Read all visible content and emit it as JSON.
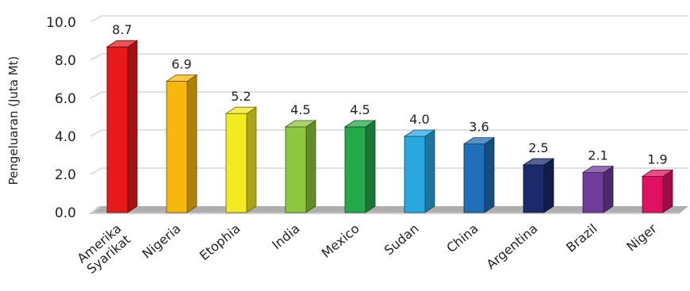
{
  "chart_data": {
    "type": "bar",
    "categories": [
      "Amerika Syarikat",
      "Nigeria",
      "Etophia",
      "India",
      "Mexico",
      "Sudan",
      "China",
      "Argentina",
      "Brazil",
      "Niger"
    ],
    "category_lines": [
      [
        "Amerika",
        "Syarikat"
      ],
      [
        "Nigeria"
      ],
      [
        "Etophia"
      ],
      [
        "India"
      ],
      [
        "Mexico"
      ],
      [
        "Sudan"
      ],
      [
        "China"
      ],
      [
        "Argentina"
      ],
      [
        "Brazil"
      ],
      [
        "Niger"
      ]
    ],
    "values": [
      8.7,
      6.9,
      5.2,
      4.5,
      4.5,
      4.0,
      3.6,
      2.5,
      2.1,
      1.9
    ],
    "value_labels": [
      "8.7",
      "6.9",
      "5.2",
      "4.5",
      "4.5",
      "4.0",
      "3.6",
      "2.5",
      "2.1",
      "1.9"
    ],
    "colors": [
      "#e8191b",
      "#f7b80e",
      "#f3ea22",
      "#8dc63f",
      "#23a84a",
      "#29a8e0",
      "#1f6fba",
      "#1b2a6b",
      "#6f3c9a",
      "#e0125f"
    ],
    "title": "",
    "xlabel": "",
    "ylabel": "Pengeluaran (Juta Mt)",
    "ylim": [
      0,
      10
    ],
    "yticks": [
      "0.0",
      "2.0",
      "4.0",
      "6.0",
      "8.0",
      "10.0"
    ],
    "grid": true,
    "legend": "none"
  }
}
